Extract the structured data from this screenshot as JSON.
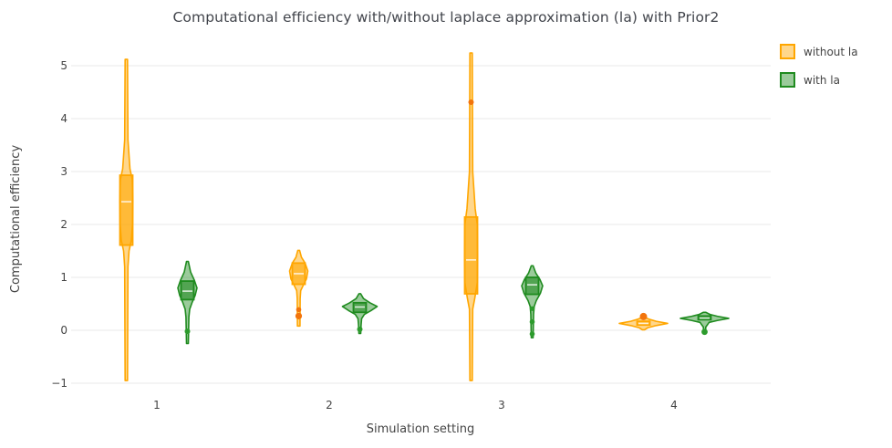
{
  "title": "Computational efficiency with/without laplace approximation (la) with Prior2",
  "x_axis": {
    "title": "Simulation setting",
    "tick_labels": [
      "1",
      "2",
      "3",
      "4"
    ]
  },
  "y_axis": {
    "title": "Computational efficiency",
    "tick_labels": [
      "−1",
      "0",
      "1",
      "2",
      "3",
      "4",
      "5"
    ],
    "tick_values": [
      -1,
      0,
      1,
      2,
      3,
      4,
      5
    ]
  },
  "chart_data": {
    "type": "violin",
    "title": "Computational efficiency with/without laplace approximation (la) with Prior2",
    "xlabel": "Simulation setting",
    "ylabel": "Computational efficiency",
    "categories": [
      "1",
      "2",
      "3",
      "4"
    ],
    "ylim": [
      -1.35,
      5.45
    ],
    "grid": "horizontal",
    "gridline_color": "#e9e9e9",
    "legend_position": "top-right",
    "series": [
      {
        "name": "without la",
        "stroke": "#ffa600",
        "fill": "rgba(255,166,0,0.45)",
        "box_fill": "rgba(255,166,0,0.6)",
        "point_color": "#f2740c",
        "violins": [
          {
            "category": "1",
            "stats": {
              "min": -0.95,
              "q1": 1.61,
              "median": 2.43,
              "q3": 2.93,
              "max": 5.12
            },
            "points": [],
            "outline": [
              [
                5.12,
                1.3
              ],
              [
                3.6,
                1.8
              ],
              [
                3.05,
                4
              ],
              [
                2.85,
                6.5
              ],
              [
                2.45,
                7.2
              ],
              [
                2.0,
                6.8
              ],
              [
                1.7,
                5.5
              ],
              [
                1.5,
                3
              ],
              [
                1.2,
                1.8
              ],
              [
                -0.95,
                1.3
              ]
            ]
          },
          {
            "category": "2",
            "stats": {
              "min": 0.08,
              "q1": 0.87,
              "median": 1.07,
              "q3": 1.27,
              "max": 1.51
            },
            "points": [
              {
                "y": 0.39,
                "r": 2.8
              },
              {
                "y": 0.27,
                "r": 3.6
              }
            ],
            "outline": [
              [
                1.51,
                1.0
              ],
              [
                1.38,
                3
              ],
              [
                1.27,
                7
              ],
              [
                1.12,
                10
              ],
              [
                0.97,
                8.5
              ],
              [
                0.85,
                5
              ],
              [
                0.75,
                2.2
              ],
              [
                0.6,
                1.6
              ],
              [
                0.08,
                1.4
              ]
            ]
          },
          {
            "category": "3",
            "stats": {
              "min": -0.95,
              "q1": 0.69,
              "median": 1.33,
              "q3": 2.14,
              "max": 5.24
            },
            "points": [
              {
                "y": 4.31,
                "r": 3.0
              }
            ],
            "outline": [
              [
                5.24,
                1.3
              ],
              [
                3.0,
                1.8
              ],
              [
                2.3,
                4.5
              ],
              [
                2.0,
                6.8
              ],
              [
                1.4,
                7.2
              ],
              [
                0.9,
                6.8
              ],
              [
                0.6,
                4
              ],
              [
                0.4,
                1.8
              ],
              [
                -0.95,
                1.3
              ]
            ]
          },
          {
            "category": "4",
            "stats": {
              "min": 0.01,
              "q1": 0.1,
              "median": 0.13,
              "q3": 0.17,
              "max": 0.25
            },
            "points": [
              {
                "y": 0.26,
                "r": 4.0
              }
            ],
            "outline": [
              [
                0.25,
                1.2
              ],
              [
                0.21,
                6
              ],
              [
                0.17,
                14
              ],
              [
                0.13,
                26.5
              ],
              [
                0.09,
                14
              ],
              [
                0.05,
                5
              ],
              [
                0.01,
                1.2
              ]
            ]
          }
        ]
      },
      {
        "name": "with la",
        "stroke": "#1f8b1f",
        "fill": "rgba(34,139,34,0.45)",
        "box_fill": "rgba(34,139,34,0.6)",
        "point_color": "#2c9b2c",
        "violins": [
          {
            "category": "1",
            "stats": {
              "min": -0.25,
              "q1": 0.58,
              "median": 0.74,
              "q3": 0.93,
              "max": 1.3
            },
            "points": [
              {
                "y": -0.02,
                "r": 3.0
              }
            ],
            "outline": [
              [
                1.3,
                1.0
              ],
              [
                1.1,
                3.5
              ],
              [
                0.95,
                7.5
              ],
              [
                0.8,
                10.5
              ],
              [
                0.66,
                8.5
              ],
              [
                0.52,
                5
              ],
              [
                0.4,
                2.5
              ],
              [
                0.25,
                1.6
              ],
              [
                -0.25,
                1.0
              ]
            ]
          },
          {
            "category": "2",
            "stats": {
              "min": -0.06,
              "q1": 0.34,
              "median": 0.44,
              "q3": 0.52,
              "max": 0.69
            },
            "points": [
              {
                "y": 0.02,
                "r": 3.0
              }
            ],
            "outline": [
              [
                0.69,
                1.0
              ],
              [
                0.6,
                4
              ],
              [
                0.52,
                11
              ],
              [
                0.45,
                19
              ],
              [
                0.37,
                12
              ],
              [
                0.3,
                5
              ],
              [
                0.22,
                2
              ],
              [
                0.1,
                1.4
              ],
              [
                -0.06,
                1.0
              ]
            ]
          },
          {
            "category": "3",
            "stats": {
              "min": -0.14,
              "q1": 0.68,
              "median": 0.86,
              "q3": 1.0,
              "max": 1.22
            },
            "points": [
              {
                "y": 0.41,
                "r": 2.6
              },
              {
                "y": 0.16,
                "r": 2.8
              },
              {
                "y": -0.07,
                "r": 2.8
              }
            ],
            "outline": [
              [
                1.22,
                1.0
              ],
              [
                1.08,
                4
              ],
              [
                0.96,
                8.5
              ],
              [
                0.84,
                11.5
              ],
              [
                0.7,
                9
              ],
              [
                0.56,
                4.5
              ],
              [
                0.45,
                2.2
              ],
              [
                0.3,
                1.5
              ],
              [
                -0.14,
                1.0
              ]
            ]
          },
          {
            "category": "4",
            "stats": {
              "min": -0.03,
              "q1": 0.2,
              "median": 0.23,
              "q3": 0.27,
              "max": 0.34
            },
            "points": [
              {
                "y": -0.03,
                "r": 3.4
              }
            ],
            "outline": [
              [
                0.34,
                1.2
              ],
              [
                0.3,
                6
              ],
              [
                0.265,
                14
              ],
              [
                0.225,
                26.5
              ],
              [
                0.185,
                14
              ],
              [
                0.15,
                5
              ],
              [
                0.06,
                1.3
              ],
              [
                -0.03,
                1.1
              ]
            ]
          }
        ]
      }
    ]
  }
}
